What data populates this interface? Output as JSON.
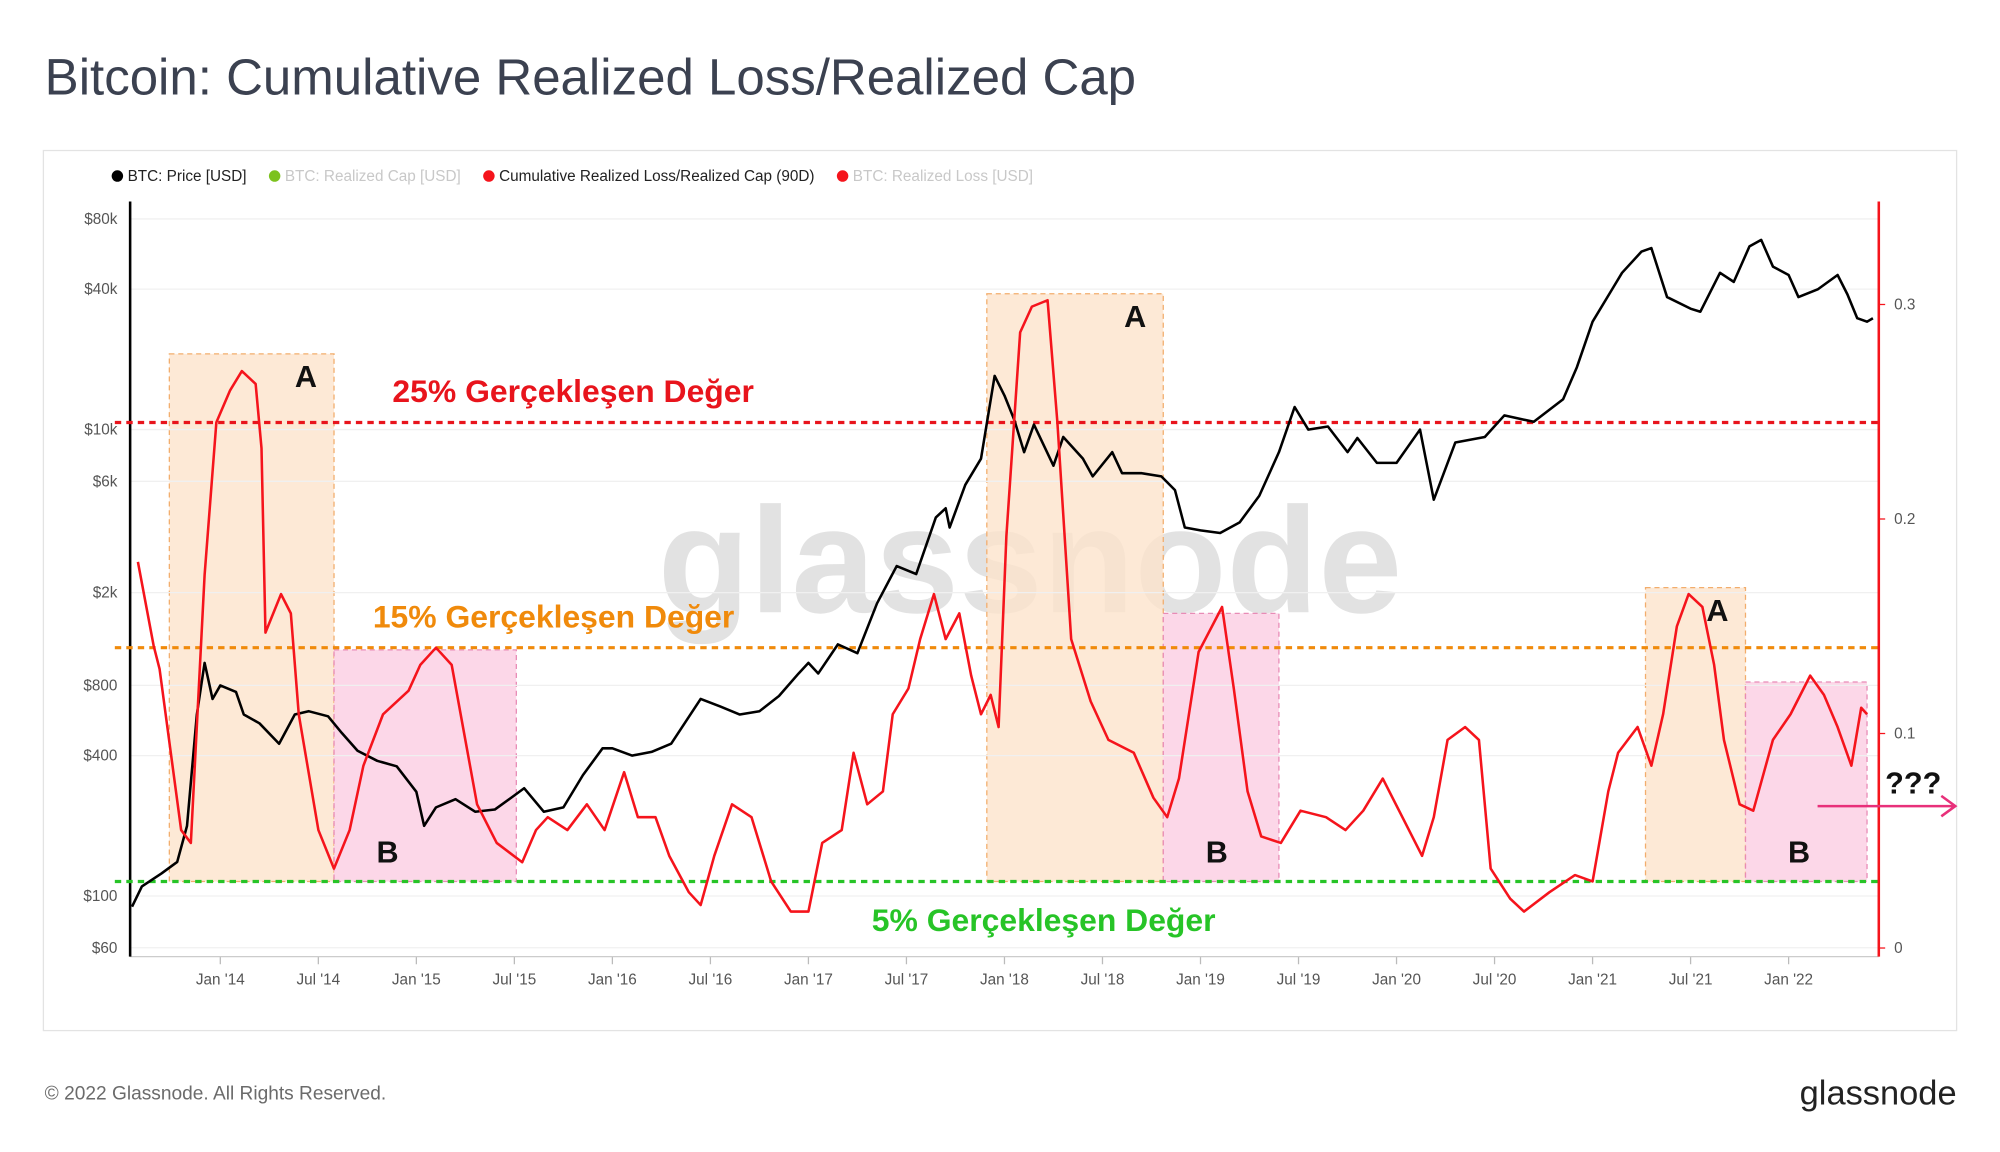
{
  "title": "Bitcoin: Cumulative Realized Loss/Realized Cap",
  "footer": "© 2022 Glassnode. All Rights Reserved.",
  "logo": "glassnode",
  "chart_data": {
    "type": "line",
    "watermark": "glassnode",
    "series": [
      {
        "name": "BTC: Price [USD]",
        "color": "#000000",
        "visible": true,
        "axis": "y",
        "x": [
          2013.55,
          2013.6,
          2013.7,
          2013.78,
          2013.83,
          2013.88,
          2013.92,
          2013.96,
          2014.0,
          2014.08,
          2014.12,
          2014.2,
          2014.3,
          2014.38,
          2014.45,
          2014.55,
          2014.62,
          2014.7,
          2014.8,
          2014.9,
          2015.0,
          2015.04,
          2015.1,
          2015.2,
          2015.3,
          2015.4,
          2015.5,
          2015.55,
          2015.65,
          2015.75,
          2015.85,
          2015.95,
          2016.0,
          2016.1,
          2016.2,
          2016.3,
          2016.45,
          2016.55,
          2016.65,
          2016.75,
          2016.85,
          2016.95,
          2017.0,
          2017.05,
          2017.15,
          2017.25,
          2017.35,
          2017.45,
          2017.55,
          2017.65,
          2017.7,
          2017.72,
          2017.8,
          2017.88,
          2017.95,
          2018.0,
          2018.05,
          2018.1,
          2018.15,
          2018.25,
          2018.3,
          2018.4,
          2018.45,
          2018.55,
          2018.6,
          2018.7,
          2018.8,
          2018.87,
          2018.92,
          2019.0,
          2019.1,
          2019.2,
          2019.3,
          2019.4,
          2019.48,
          2019.55,
          2019.65,
          2019.75,
          2019.8,
          2019.9,
          2020.0,
          2020.12,
          2020.19,
          2020.3,
          2020.45,
          2020.55,
          2020.7,
          2020.85,
          2020.92,
          2021.0,
          2021.1,
          2021.15,
          2021.25,
          2021.3,
          2021.38,
          2021.5,
          2021.55,
          2021.65,
          2021.72,
          2021.8,
          2021.86,
          2021.92,
          2022.0,
          2022.05,
          2022.15,
          2022.25,
          2022.3,
          2022.35,
          2022.4,
          2022.43
        ],
        "values": [
          90,
          110,
          125,
          140,
          200,
          600,
          1000,
          700,
          800,
          750,
          600,
          550,
          450,
          600,
          620,
          590,
          500,
          420,
          380,
          360,
          280,
          200,
          240,
          260,
          230,
          235,
          270,
          290,
          230,
          240,
          330,
          430,
          430,
          400,
          415,
          450,
          700,
          650,
          600,
          620,
          720,
          900,
          1000,
          900,
          1200,
          1100,
          1800,
          2600,
          2400,
          4200,
          4600,
          3800,
          5800,
          7500,
          17000,
          14000,
          11000,
          8000,
          10500,
          7000,
          9300,
          7500,
          6300,
          8000,
          6500,
          6500,
          6300,
          5500,
          3800,
          3700,
          3600,
          4000,
          5200,
          8000,
          12500,
          10000,
          10300,
          8000,
          9200,
          7200,
          7200,
          10000,
          5000,
          8800,
          9300,
          11500,
          10800,
          13500,
          18500,
          29000,
          40000,
          47000,
          58000,
          60000,
          37000,
          33000,
          32000,
          47000,
          43000,
          61000,
          65000,
          50000,
          46000,
          37000,
          40000,
          46000,
          38000,
          30000,
          29000,
          30000
        ]
      },
      {
        "name": "BTC: Realized Cap [USD]",
        "color": "#7cc21e",
        "visible": false
      },
      {
        "name": "Cumulative Realized Loss/Realized Cap (90D)",
        "color": "#f5141c",
        "visible": true,
        "axis": "y2",
        "x": [
          2013.58,
          2013.66,
          2013.69,
          2013.8,
          2013.85,
          2013.92,
          2013.98,
          2014.05,
          2014.11,
          2014.18,
          2014.21,
          2014.23,
          2014.31,
          2014.36,
          2014.4,
          2014.5,
          2014.58,
          2014.66,
          2014.73,
          2014.83,
          2014.96,
          2015.02,
          2015.1,
          2015.18,
          2015.25,
          2015.31,
          2015.41,
          2015.54,
          2015.61,
          2015.67,
          2015.77,
          2015.87,
          2015.96,
          2016.06,
          2016.13,
          2016.22,
          2016.29,
          2016.39,
          2016.45,
          2016.52,
          2016.61,
          2016.71,
          2016.81,
          2016.91,
          2017.0,
          2017.07,
          2017.17,
          2017.23,
          2017.3,
          2017.38,
          2017.43,
          2017.51,
          2017.57,
          2017.64,
          2017.7,
          2017.77,
          2017.83,
          2017.88,
          2017.93,
          2017.97,
          2018.01,
          2018.08,
          2018.14,
          2018.22,
          2018.27,
          2018.34,
          2018.44,
          2018.53,
          2018.66,
          2018.76,
          2018.83,
          2018.89,
          2018.99,
          2019.11,
          2019.17,
          2019.24,
          2019.31,
          2019.41,
          2019.51,
          2019.64,
          2019.74,
          2019.83,
          2019.93,
          2020.03,
          2020.13,
          2020.19,
          2020.26,
          2020.35,
          2020.42,
          2020.48,
          2020.58,
          2020.65,
          2020.78,
          2020.91,
          2021.0,
          2021.08,
          2021.13,
          2021.23,
          2021.3,
          2021.36,
          2021.43,
          2021.49,
          2021.56,
          2021.62,
          2021.67,
          2021.75,
          2021.82,
          2021.92,
          2022.01,
          2022.11,
          2022.18,
          2022.25,
          2022.32,
          2022.37,
          2022.4
        ],
        "values": [
          0.18,
          0.141,
          0.13,
          0.055,
          0.049,
          0.174,
          0.245,
          0.26,
          0.269,
          0.263,
          0.233,
          0.147,
          0.165,
          0.156,
          0.109,
          0.055,
          0.037,
          0.055,
          0.085,
          0.109,
          0.12,
          0.132,
          0.14,
          0.132,
          0.097,
          0.067,
          0.049,
          0.04,
          0.055,
          0.061,
          0.055,
          0.067,
          0.055,
          0.082,
          0.061,
          0.061,
          0.043,
          0.026,
          0.02,
          0.043,
          0.067,
          0.061,
          0.031,
          0.017,
          0.017,
          0.049,
          0.055,
          0.091,
          0.067,
          0.073,
          0.109,
          0.121,
          0.144,
          0.165,
          0.144,
          0.156,
          0.127,
          0.109,
          0.118,
          0.103,
          0.192,
          0.287,
          0.299,
          0.302,
          0.245,
          0.144,
          0.115,
          0.097,
          0.091,
          0.07,
          0.061,
          0.079,
          0.138,
          0.159,
          0.121,
          0.073,
          0.052,
          0.049,
          0.064,
          0.061,
          0.055,
          0.064,
          0.079,
          0.061,
          0.043,
          0.061,
          0.097,
          0.103,
          0.097,
          0.037,
          0.023,
          0.017,
          0.026,
          0.034,
          0.031,
          0.073,
          0.091,
          0.103,
          0.085,
          0.109,
          0.15,
          0.165,
          0.159,
          0.132,
          0.097,
          0.067,
          0.064,
          0.097,
          0.109,
          0.127,
          0.118,
          0.103,
          0.085,
          0.112,
          0.109
        ]
      },
      {
        "name": "BTC: Realized Loss [USD]",
        "color": "#f5141c",
        "visible": false
      }
    ],
    "xlim": [
      2013.54,
      2022.46
    ],
    "xticks": [
      {
        "value": 2014,
        "label": "Jan '14"
      },
      {
        "value": 2014.5,
        "label": "Jul '14"
      },
      {
        "value": 2015,
        "label": "Jan '15"
      },
      {
        "value": 2015.5,
        "label": "Jul '15"
      },
      {
        "value": 2016,
        "label": "Jan '16"
      },
      {
        "value": 2016.5,
        "label": "Jul '16"
      },
      {
        "value": 2017,
        "label": "Jan '17"
      },
      {
        "value": 2017.5,
        "label": "Jul '17"
      },
      {
        "value": 2018,
        "label": "Jan '18"
      },
      {
        "value": 2018.5,
        "label": "Jul '18"
      },
      {
        "value": 2019,
        "label": "Jan '19"
      },
      {
        "value": 2019.5,
        "label": "Jul '19"
      },
      {
        "value": 2020,
        "label": "Jan '20"
      },
      {
        "value": 2020.5,
        "label": "Jul '20"
      },
      {
        "value": 2021,
        "label": "Jan '21"
      },
      {
        "value": 2021.5,
        "label": "Jul '21"
      },
      {
        "value": 2022,
        "label": "Jan '22"
      }
    ],
    "ylog": true,
    "ylim": [
      55,
      95000
    ],
    "yticks": [
      {
        "value": 80000,
        "label": "$80k"
      },
      {
        "value": 40000,
        "label": "$40k"
      },
      {
        "value": 10000,
        "label": "$10k"
      },
      {
        "value": 6000,
        "label": "$6k"
      },
      {
        "value": 2000,
        "label": "$2k"
      },
      {
        "value": 800,
        "label": "$800"
      },
      {
        "value": 400,
        "label": "$400"
      },
      {
        "value": 100,
        "label": "$100"
      },
      {
        "value": 60,
        "label": "$60"
      }
    ],
    "y2lim": [
      -0.004,
      0.348
    ],
    "y2ticks": [
      0,
      0.1,
      0.2,
      0.3
    ],
    "y2_axis_color": "#f5141c",
    "grid": true,
    "legend": "top-left",
    "reference_lines": [
      {
        "label": "25% Gerçekleşen Değer",
        "y2": 0.245,
        "color": "#e8141c",
        "label_x": 2015.8
      },
      {
        "label": "15% Gerçekleşen Değer",
        "y2": 0.14,
        "color": "#f08a0b",
        "label_x": 2015.7
      },
      {
        "label": "5% Gerçekleşen Değer",
        "y2": 0.031,
        "color": "#27c427",
        "label_x": 2018.2
      }
    ],
    "regions": [
      {
        "label": "A",
        "x": [
          2013.74,
          2014.58
        ],
        "y2": [
          0.031,
          0.277
        ],
        "kind": "A"
      },
      {
        "label": "B",
        "x": [
          2014.58,
          2015.51
        ],
        "y2": [
          0.031,
          0.139
        ],
        "kind": "B"
      },
      {
        "label": "A",
        "x": [
          2017.91,
          2018.81
        ],
        "y2": [
          0.031,
          0.305
        ],
        "kind": "A"
      },
      {
        "label": "B",
        "x": [
          2018.81,
          2019.4
        ],
        "y2": [
          0.031,
          0.156
        ],
        "kind": "B"
      },
      {
        "label": "A",
        "x": [
          2021.27,
          2021.78
        ],
        "y2": [
          0.031,
          0.168
        ],
        "kind": "A"
      },
      {
        "label": "B",
        "x": [
          2021.78,
          2022.4
        ],
        "y2": [
          0.031,
          0.124
        ],
        "kind": "B"
      }
    ],
    "annotation": "???"
  }
}
